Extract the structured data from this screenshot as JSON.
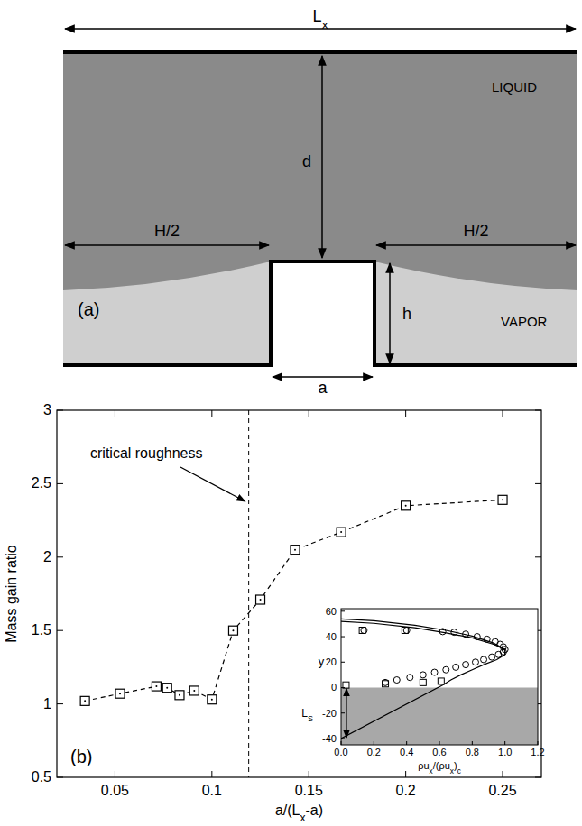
{
  "diagram": {
    "label": "(a)",
    "width_label": {
      "text": "L",
      "sub": "x"
    },
    "liquid": "LIQUID",
    "vapor": "VAPOR",
    "depth": "d",
    "half_gap": [
      "H/2",
      "H/2"
    ],
    "height": "h",
    "post_width": "a"
  },
  "chart_data": [
    {
      "type": "line",
      "panel_label": "(b)",
      "ylabel": "Mass gain ratio",
      "xlabel": [
        {
          "text": "a/(L"
        },
        {
          "sub": "x"
        },
        {
          "text": "-a)"
        }
      ],
      "x": [
        0.0345,
        0.0526,
        0.0714,
        0.0769,
        0.0833,
        0.0909,
        0.1,
        0.111,
        0.125,
        0.1429,
        0.1667,
        0.2,
        0.25
      ],
      "values": [
        1.02,
        1.07,
        1.12,
        1.11,
        1.06,
        1.09,
        1.03,
        1.5,
        1.71,
        2.05,
        2.17,
        2.35,
        2.39
      ],
      "marker": "square",
      "line_style": "dashed",
      "color": "#000000",
      "xlim": [
        0.02,
        0.27
      ],
      "ylim": [
        0.5,
        3
      ],
      "xticks": [
        0.05,
        0.1,
        0.15,
        0.2,
        0.25
      ],
      "yticks": [
        0.5,
        1,
        1.5,
        2,
        2.5,
        3
      ],
      "annotation": {
        "text": "critical roughness",
        "x": 0.119
      }
    },
    {
      "type": "scatter",
      "ylabel": "y",
      "xlabel": [
        {
          "text": "ρu"
        },
        {
          "sub": "x"
        },
        {
          "text": "/(ρu"
        },
        {
          "sub": "x"
        },
        {
          "text": ")"
        },
        {
          "sub": "c"
        }
      ],
      "xlim": [
        0,
        1.2
      ],
      "ylim": [
        -45,
        62
      ],
      "xticks": [
        {
          "value": 0,
          "label": "0.0"
        },
        0.2,
        0.4,
        0.6,
        0.8,
        {
          "value": 1,
          "label": "1.0"
        },
        1.2
      ],
      "yticks": [
        -40,
        -20,
        0,
        20,
        40,
        60
      ],
      "wall_y": 0,
      "annotation": {
        "text": "L",
        "sub": "S",
        "y_from": 0,
        "y_to": -40
      },
      "series": [
        {
          "type": "scatter",
          "marker": "circle",
          "color": "#000000",
          "x": [
            0.14,
            0.4,
            0.62,
            0.69,
            0.76,
            0.83,
            0.89,
            0.94,
            0.97,
            0.99,
            1.0,
            0.99,
            0.96,
            0.92,
            0.87,
            0.82,
            0.76,
            0.7,
            0.64,
            0.57,
            0.5,
            0.42,
            0.34,
            0.27
          ],
          "values": [
            45,
            45,
            44,
            43.5,
            42,
            40,
            38,
            36,
            34,
            32,
            30,
            28,
            26,
            24,
            22,
            20,
            18,
            16,
            14,
            12,
            10,
            8,
            6,
            4
          ]
        },
        {
          "type": "scatter",
          "marker": "square",
          "color": "#000000",
          "x": [
            0.13,
            0.39,
            0.03,
            0.27,
            0.5,
            0.61
          ],
          "values": [
            45,
            45,
            2,
            3,
            4,
            5
          ]
        },
        {
          "type": "line",
          "line_style": "solid",
          "color": "#000000",
          "x": [
            0,
            0.2,
            0.45,
            0.64,
            0.8,
            0.93,
            1.0,
            1.0,
            0.95,
            0.87,
            0.8,
            0.73,
            0.67,
            0.62
          ],
          "values": [
            52,
            50.5,
            47,
            43,
            39,
            34,
            30,
            26,
            22,
            18,
            14,
            10,
            6,
            2
          ]
        },
        {
          "type": "line",
          "line_style": "solid",
          "color": "#000000",
          "x": [
            0,
            0.2,
            0.45,
            0.64,
            0.8,
            0.93,
            1.0
          ],
          "values": [
            54,
            52.5,
            49,
            45,
            40.5,
            35,
            30
          ]
        },
        {
          "type": "line",
          "line_style": "solid",
          "color": "#000000",
          "x": [
            0,
            0.62
          ],
          "values": [
            -40,
            2
          ]
        }
      ]
    }
  ]
}
